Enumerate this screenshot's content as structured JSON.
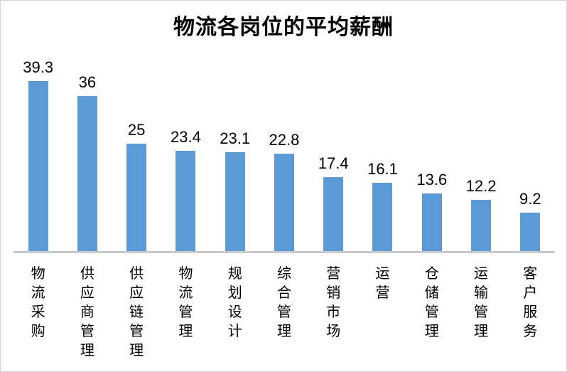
{
  "chart_data": {
    "type": "bar",
    "title": "物流各岗位的平均薪酬",
    "categories": [
      "物流采购",
      "供应商管理",
      "供应链管理",
      "物流管理",
      "规划设计",
      "综合管理",
      "营销市场",
      "运营",
      "仓储管理",
      "运输管理",
      "客户服务"
    ],
    "values": [
      39.3,
      36,
      25,
      23.4,
      23.1,
      22.8,
      17.4,
      16.1,
      13.6,
      12.2,
      9.2
    ],
    "value_labels": [
      "39.3",
      "36",
      "25",
      "23.4",
      "23.1",
      "22.8",
      "17.4",
      "16.1",
      "13.6",
      "12.2",
      "9.2"
    ],
    "xlabel": "",
    "ylabel": "",
    "ylim": [
      0,
      42
    ],
    "grid": false,
    "legend": false,
    "data_labels": true,
    "category_text_orientation": "vertical-stacked",
    "bar_color": "#5B9BD5",
    "axis_line_color": "#c9c9c9",
    "title_color": "#000000",
    "label_color": "#000000",
    "background_color": "#ffffff",
    "border_color": "#d4d4d4"
  }
}
